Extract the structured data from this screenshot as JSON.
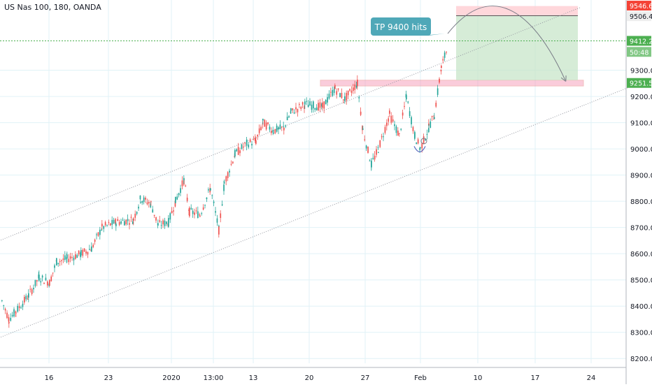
{
  "chart_data": {
    "type": "candlestick",
    "title": "US Nas 100, 180, OANDA",
    "x_ticks": [
      "16",
      "23",
      "2020",
      "13:00",
      "13",
      "20",
      "27",
      "Feb",
      "10",
      "17",
      "24"
    ],
    "y_ticks": [
      8200,
      8300,
      8400,
      8500,
      8600,
      8700,
      8800,
      8900,
      9000,
      9100,
      9200,
      9300
    ],
    "ylim": [
      8190,
      9560
    ],
    "grid": true,
    "colors": {
      "up": "#26a69a",
      "down": "#ef5350",
      "zone": "#f48fb1",
      "target": "#c8e6c9",
      "stop": "#ffcdd2",
      "note": "#4fa8b8",
      "price": "#4caf50",
      "alert": "#f44336",
      "channel": "#9598a1"
    },
    "price_labels": [
      {
        "text": "9546.6",
        "value": 9546.6,
        "style": "alert"
      },
      {
        "text": "9506.4",
        "value": 9506.4,
        "style": "light"
      },
      {
        "text": "9412.2",
        "value": 9412.2,
        "style": "price"
      },
      {
        "text": "50:48",
        "value": 9370,
        "style": "price-light"
      },
      {
        "text": "9251.5",
        "value": 9251.5,
        "style": "price"
      }
    ],
    "annotations": [
      {
        "type": "callout",
        "text": "TP 9400 hits"
      }
    ],
    "channel": {
      "upper": [
        [
          -10,
          8640
        ],
        [
          830,
          9540
        ]
      ],
      "lower": [
        [
          -10,
          8270
        ],
        [
          932,
          9270
        ]
      ]
    },
    "resistance_zone": {
      "from": 9240,
      "to": 9262
    },
    "position": {
      "entry": 9262,
      "target_top": 9508,
      "stop_top": 9545
    },
    "series_path": [
      [
        2,
        8420
      ],
      [
        12,
        8350
      ],
      [
        22,
        8380
      ],
      [
        40,
        8440
      ],
      [
        55,
        8510
      ],
      [
        70,
        8490
      ],
      [
        80,
        8570
      ],
      [
        95,
        8580
      ],
      [
        115,
        8600
      ],
      [
        130,
        8620
      ],
      [
        145,
        8700
      ],
      [
        165,
        8720
      ],
      [
        190,
        8730
      ],
      [
        200,
        8810
      ],
      [
        215,
        8790
      ],
      [
        225,
        8710
      ],
      [
        240,
        8720
      ],
      [
        250,
        8800
      ],
      [
        262,
        8880
      ],
      [
        270,
        8760
      ],
      [
        285,
        8750
      ],
      [
        300,
        8850
      ],
      [
        312,
        8690
      ],
      [
        320,
        8870
      ],
      [
        335,
        8980
      ],
      [
        352,
        9020
      ],
      [
        365,
        9030
      ],
      [
        375,
        9100
      ],
      [
        390,
        9070
      ],
      [
        405,
        9080
      ],
      [
        415,
        9140
      ],
      [
        435,
        9170
      ],
      [
        460,
        9160
      ],
      [
        478,
        9230
      ],
      [
        492,
        9190
      ],
      [
        510,
        9250
      ],
      [
        518,
        9070
      ],
      [
        530,
        8940
      ],
      [
        540,
        9000
      ],
      [
        556,
        9130
      ],
      [
        570,
        9050
      ],
      [
        580,
        9200
      ],
      [
        592,
        9050
      ],
      [
        600,
        9000
      ],
      [
        612,
        9080
      ],
      [
        620,
        9130
      ],
      [
        630,
        9310
      ],
      [
        638,
        9380
      ]
    ]
  }
}
